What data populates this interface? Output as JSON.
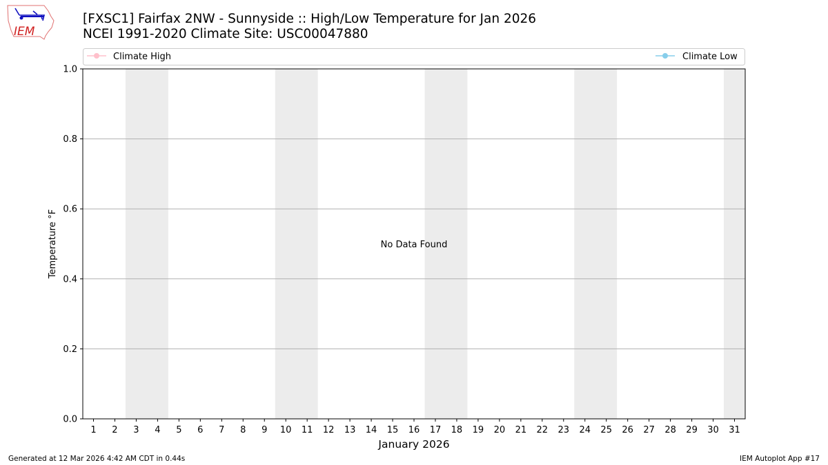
{
  "header": {
    "title_line1": "[FXSC1] Fairfax 2NW - Sunnyside :: High/Low Temperature for Jan 2026",
    "title_line2": "NCEI 1991-2020 Climate Site: USC00047880",
    "logo_text": "IEM"
  },
  "footer": {
    "left": "Generated at 12 Mar 2026 4:42 AM CDT in 0.44s",
    "right": "IEM Autoplot App #17"
  },
  "chart_data": {
    "type": "line",
    "title": "[FXSC1] Fairfax 2NW - Sunnyside :: High/Low Temperature for Jan 2026",
    "xlabel": "January 2026",
    "ylabel": "Temperature °F",
    "xlim": [
      0.5,
      31.5
    ],
    "ylim": [
      0,
      1
    ],
    "x_ticks": [
      1,
      2,
      3,
      4,
      5,
      6,
      7,
      8,
      9,
      10,
      11,
      12,
      13,
      14,
      15,
      16,
      17,
      18,
      19,
      20,
      21,
      22,
      23,
      24,
      25,
      26,
      27,
      28,
      29,
      30,
      31
    ],
    "y_ticks": [
      "0.0",
      "0.2",
      "0.4",
      "0.6",
      "0.8",
      "1.0"
    ],
    "grid": "horizontal",
    "shaded_days": [
      [
        3,
        4
      ],
      [
        10,
        11
      ],
      [
        17,
        18
      ],
      [
        24,
        25
      ],
      [
        31,
        31
      ]
    ],
    "shade_color": "#ececec",
    "legend_placement": "top",
    "series": [
      {
        "name": "Climate High",
        "color": "#ffc0cb",
        "values": []
      },
      {
        "name": "Climate Low",
        "color": "#87ceeb",
        "values": []
      }
    ],
    "annotation": {
      "text": "No Data Found",
      "x": 16,
      "y": 0.5
    }
  }
}
